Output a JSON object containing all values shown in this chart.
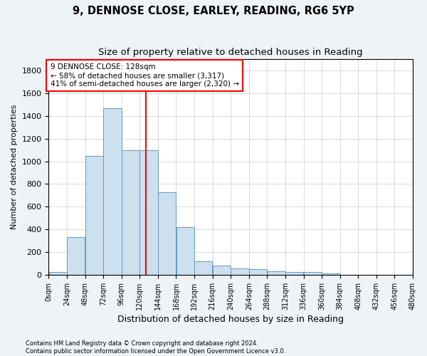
{
  "title": "9, DENNOSE CLOSE, EARLEY, READING, RG6 5YP",
  "subtitle": "Size of property relative to detached houses in Reading",
  "xlabel": "Distribution of detached houses by size in Reading",
  "ylabel": "Number of detached properties",
  "bar_color": "#cce0f0",
  "bar_edge_color": "#6699bb",
  "bins": [
    0,
    24,
    48,
    72,
    96,
    120,
    144,
    168,
    192,
    216,
    240,
    264,
    288,
    312,
    336,
    360,
    384,
    408,
    432,
    456,
    480
  ],
  "bin_labels": [
    "0sqm",
    "24sqm",
    "48sqm",
    "72sqm",
    "96sqm",
    "120sqm",
    "144sqm",
    "168sqm",
    "192sqm",
    "216sqm",
    "240sqm",
    "264sqm",
    "288sqm",
    "312sqm",
    "336sqm",
    "360sqm",
    "384sqm",
    "408sqm",
    "432sqm",
    "456sqm",
    "480sqm"
  ],
  "values": [
    25,
    330,
    1050,
    1470,
    1100,
    1100,
    730,
    420,
    120,
    80,
    55,
    50,
    30,
    25,
    25,
    15,
    0,
    0,
    0,
    0
  ],
  "ylim": [
    0,
    1900
  ],
  "yticks": [
    0,
    200,
    400,
    600,
    800,
    1000,
    1200,
    1400,
    1600,
    1800
  ],
  "property_line_x": 128,
  "annotation_title": "9 DENNOSE CLOSE: 128sqm",
  "annotation_line1": "← 58% of detached houses are smaller (3,317)",
  "annotation_line2": "41% of semi-detached houses are larger (2,320) →",
  "footnote1": "Contains HM Land Registry data © Crown copyright and database right 2024.",
  "footnote2": "Contains public sector information licensed under the Open Government Licence v3.0.",
  "bg_color": "#eef3f8",
  "plot_bg_color": "#ffffff",
  "grid_color": "#cccccc"
}
